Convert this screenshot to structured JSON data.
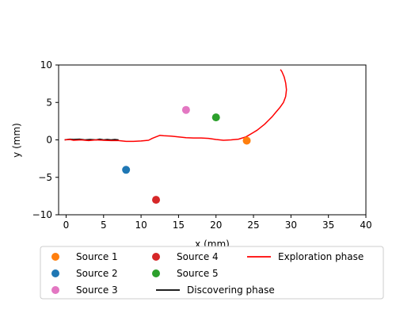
{
  "chart_data": {
    "type": "scatter",
    "title": "",
    "xlabel": "x (mm)",
    "ylabel": "y (mm)",
    "xlim": [
      -1,
      40
    ],
    "ylim": [
      -10,
      10
    ],
    "xticks": [
      "0",
      "5",
      "10",
      "15",
      "20",
      "25",
      "30",
      "35",
      "40"
    ],
    "yticks": [
      "10",
      "5",
      "0",
      "−5",
      "−10"
    ],
    "grid": false,
    "legend_placement": "bottom",
    "sources": [
      {
        "name": "Source 1",
        "x": 24.1,
        "y": -0.1,
        "color": "#ff7f0e"
      },
      {
        "name": "Source 2",
        "x": 8.0,
        "y": -4.0,
        "color": "#1f77b4"
      },
      {
        "name": "Source 3",
        "x": 16.0,
        "y": 4.0,
        "color": "#e377c2"
      },
      {
        "name": "Source 4",
        "x": 12.0,
        "y": -8.0,
        "color": "#d62728"
      },
      {
        "name": "Source 5",
        "x": 20.0,
        "y": 3.0,
        "color": "#2ca02c"
      }
    ],
    "lines": [
      {
        "name": "Discovering phase",
        "color": "#000000",
        "points": [
          [
            -0.2,
            0.0
          ],
          [
            0.5,
            0.1
          ],
          [
            1.0,
            0.05
          ],
          [
            1.8,
            0.1
          ],
          [
            2.5,
            0.0
          ],
          [
            3.2,
            0.05
          ],
          [
            4.0,
            0.0
          ],
          [
            4.5,
            0.1
          ],
          [
            5.0,
            0.0
          ],
          [
            5.5,
            0.05
          ],
          [
            6.0,
            0.0
          ],
          [
            6.5,
            0.05
          ],
          [
            7.0,
            0.0
          ]
        ]
      },
      {
        "name": "Exploration phase",
        "color": "#ff0000",
        "points": [
          [
            -0.2,
            0.0
          ],
          [
            0.5,
            0.05
          ],
          [
            1.0,
            -0.05
          ],
          [
            2.0,
            0.0
          ],
          [
            3.0,
            -0.1
          ],
          [
            4.0,
            0.0
          ],
          [
            5.0,
            -0.05
          ],
          [
            6.0,
            -0.1
          ],
          [
            7.0,
            -0.1
          ],
          [
            8.0,
            -0.2
          ],
          [
            9.0,
            -0.2
          ],
          [
            10.0,
            -0.15
          ],
          [
            11.0,
            -0.05
          ],
          [
            11.5,
            0.2
          ],
          [
            12.0,
            0.4
          ],
          [
            12.5,
            0.6
          ],
          [
            13.0,
            0.55
          ],
          [
            14.0,
            0.5
          ],
          [
            15.0,
            0.4
          ],
          [
            16.0,
            0.3
          ],
          [
            17.0,
            0.25
          ],
          [
            18.0,
            0.25
          ],
          [
            19.0,
            0.2
          ],
          [
            20.0,
            0.05
          ],
          [
            21.0,
            -0.05
          ],
          [
            22.0,
            0.0
          ],
          [
            23.0,
            0.1
          ],
          [
            24.0,
            0.4
          ],
          [
            25.0,
            1.0
          ],
          [
            25.5,
            1.3
          ],
          [
            26.0,
            1.7
          ],
          [
            26.5,
            2.1
          ],
          [
            27.0,
            2.6
          ],
          [
            27.5,
            3.1
          ],
          [
            28.0,
            3.7
          ],
          [
            28.5,
            4.3
          ],
          [
            29.0,
            5.0
          ],
          [
            29.3,
            5.8
          ],
          [
            29.4,
            6.7
          ],
          [
            29.3,
            7.6
          ],
          [
            29.1,
            8.4
          ],
          [
            28.8,
            9.1
          ],
          [
            28.6,
            9.4
          ]
        ]
      }
    ]
  }
}
